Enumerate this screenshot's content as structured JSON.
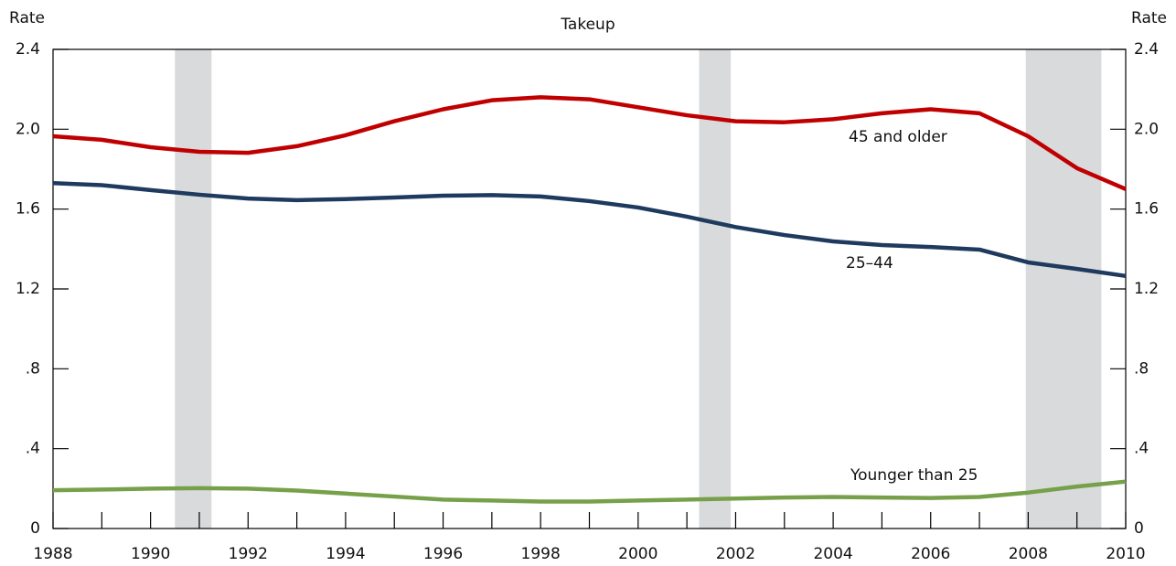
{
  "chart_data": {
    "type": "line",
    "title": "Takeup",
    "y_label": "Rate",
    "y2_label": "Rate",
    "x": [
      1988,
      1989,
      1990,
      1991,
      1992,
      1993,
      1994,
      1995,
      1996,
      1997,
      1998,
      1999,
      2000,
      2001,
      2002,
      2003,
      2004,
      2005,
      2006,
      2007,
      2008,
      2009,
      2010
    ],
    "xlim": [
      1988,
      2010
    ],
    "xticks": [
      1988,
      1990,
      1992,
      1994,
      1996,
      1998,
      2000,
      2002,
      2004,
      2006,
      2008,
      2010
    ],
    "xminor": [
      1989,
      1991,
      1993,
      1995,
      1997,
      1999,
      2001,
      2003,
      2005,
      2007,
      2009
    ],
    "ylim": [
      0,
      2.4
    ],
    "yticks": [
      0,
      {
        "value": 0.4,
        "label": ".4"
      },
      {
        "value": 0.8,
        "label": ".8"
      },
      1.2,
      1.6,
      {
        "value": 2,
        "label": "2.0"
      },
      2.4
    ],
    "y2lim": [
      0,
      2.4
    ],
    "y2ticks": [
      0,
      {
        "value": 0.4,
        "label": ".4"
      },
      {
        "value": 0.8,
        "label": ".8"
      },
      1.2,
      1.6,
      {
        "value": 2,
        "label": "2.0"
      },
      2.4
    ],
    "shaded_periods": [
      [
        1990.5,
        1991.25
      ],
      [
        2001.25,
        2001.9
      ],
      [
        2007.95,
        2009.5
      ]
    ],
    "shade_color": "#d9dadc",
    "series": [
      {
        "name": "45 and older",
        "color": "#c00000",
        "values": [
          1.965,
          1.947,
          1.91,
          1.887,
          1.882,
          1.915,
          1.97,
          2.04,
          2.1,
          2.145,
          2.16,
          2.15,
          2.11,
          2.07,
          2.04,
          2.035,
          2.05,
          2.08,
          2.1,
          2.08,
          1.965,
          1.805,
          1.7
        ]
      },
      {
        "name": "25–44",
        "color": "#1f3a5f",
        "values": [
          1.73,
          1.72,
          1.695,
          1.672,
          1.653,
          1.645,
          1.65,
          1.658,
          1.667,
          1.67,
          1.663,
          1.64,
          1.608,
          1.562,
          1.51,
          1.47,
          1.438,
          1.42,
          1.41,
          1.397,
          1.333,
          1.3,
          1.265
        ]
      },
      {
        "name": "Younger than 25",
        "color": "#77a04a",
        "values": [
          0.192,
          0.195,
          0.2,
          0.202,
          0.2,
          0.19,
          0.175,
          0.16,
          0.145,
          0.14,
          0.135,
          0.135,
          0.14,
          0.145,
          0.15,
          0.155,
          0.158,
          0.155,
          0.153,
          0.158,
          0.18,
          0.21,
          0.235
        ]
      }
    ]
  }
}
